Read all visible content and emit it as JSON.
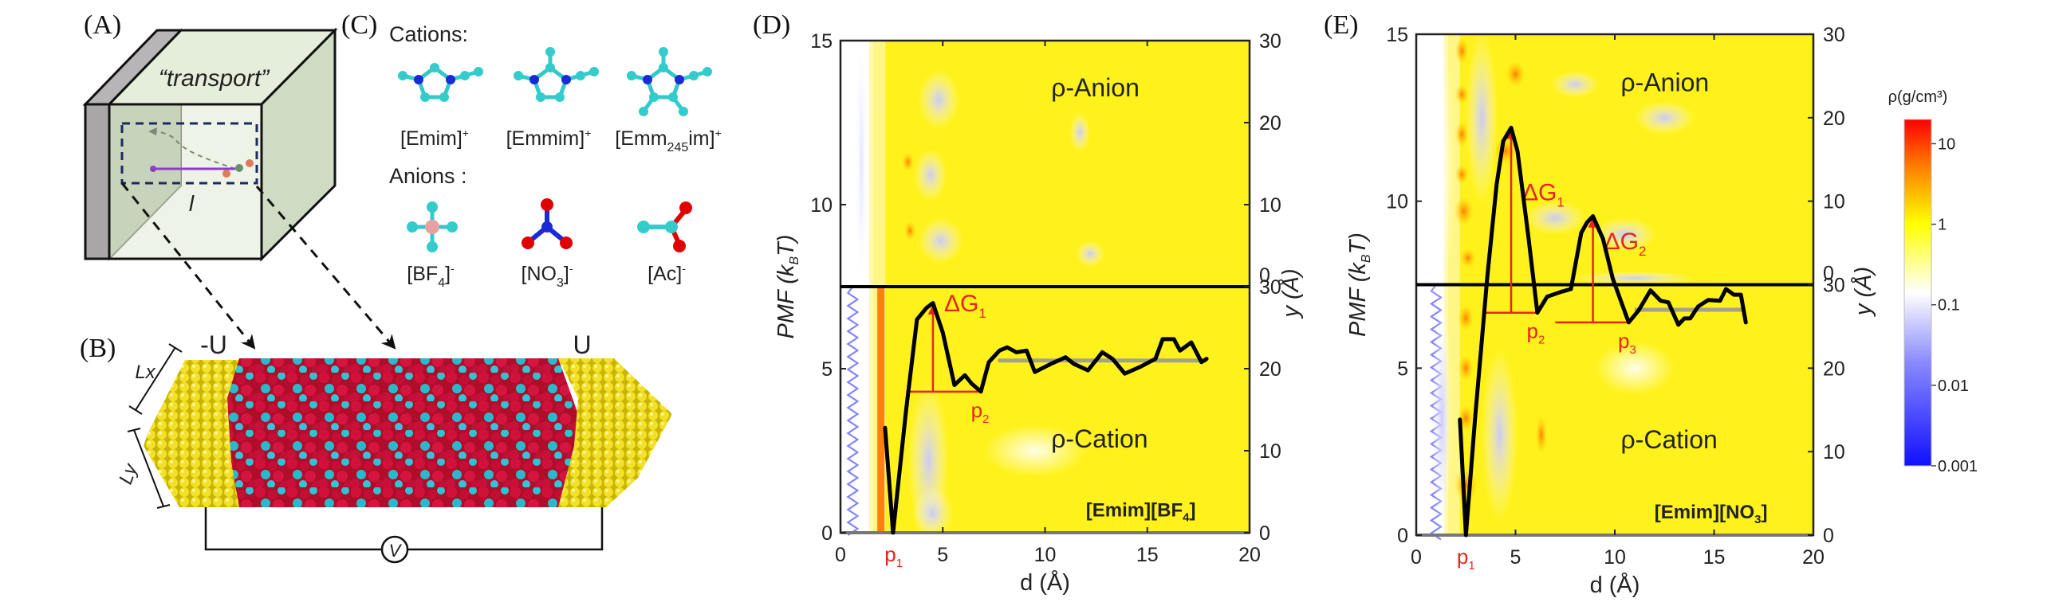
{
  "panels": {
    "A": {
      "label": "(A)",
      "caption": "“transport”",
      "length_symbol": "l"
    },
    "B": {
      "label": "(B)",
      "left_potential": "-U",
      "right_potential": "U",
      "dim_x": "Lx",
      "dim_y": "Ly",
      "voltmeter": "V"
    },
    "C": {
      "label": "(C)",
      "cations_heading": "Cations:",
      "anions_heading": "Anions :",
      "cations": [
        {
          "name": "[Emim]",
          "charge": "+",
          "sub": ""
        },
        {
          "name": "[Emmim]",
          "charge": "+",
          "sub": ""
        },
        {
          "name_pre": "[Emm",
          "sub": "245",
          "name_post": "im]",
          "charge": "+"
        }
      ],
      "anions": [
        {
          "pre": "[BF",
          "sub": "4",
          "post": "]",
          "charge": "-"
        },
        {
          "pre": "[NO",
          "sub": "3",
          "post": "]",
          "charge": "-"
        },
        {
          "pre": "[Ac]",
          "sub": "",
          "post": "",
          "charge": "-"
        }
      ]
    },
    "D": {
      "label": "(D)"
    },
    "E": {
      "label": "(E)"
    }
  },
  "colors": {
    "heatmap_yellow": "#ffff00",
    "heatmap_red": "#ff0000",
    "heatmap_blue": "#1010ff",
    "pmf_line": "#000000",
    "annotation_red": "#e8231d",
    "mean_line": "#9a9a9a",
    "electrode_gold": "#e6d21a",
    "anion_red": "#c8102e",
    "cation_cyan": "#27c0d0"
  },
  "chart_data": [
    {
      "id": "D",
      "type": "line",
      "overlay": "heatmap",
      "title": "",
      "system": {
        "pre": "[Emim][BF",
        "sub": "4",
        "post": "]"
      },
      "xlabel": "d (Å)",
      "ylabel": "PMF (k_BT)",
      "ylabel_parts": {
        "main": "PMF (",
        "k": "k",
        "sub": "B",
        "end": "T)"
      },
      "right_ylabel": "y (Å)",
      "xlim": [
        0,
        20
      ],
      "ylim": [
        0,
        15
      ],
      "xticks": [
        0,
        5,
        10,
        15,
        20
      ],
      "yticks": [
        0,
        5,
        10,
        15
      ],
      "right_yticks_top": [
        0,
        10,
        20,
        30
      ],
      "right_yticks_bottom": [
        0,
        10,
        20,
        30
      ],
      "split_pmf": 7.5,
      "region_labels": {
        "top": "ρ-Anion",
        "bottom": "ρ-Cation"
      },
      "series": [
        {
          "name": "PMF",
          "x": [
            2.18,
            2.57,
            3.2,
            3.74,
            4.2,
            4.52,
            5.0,
            5.57,
            6.08,
            6.4,
            6.86,
            7.25,
            7.77,
            8.15,
            8.6,
            9.1,
            9.5,
            10.3,
            11.0,
            11.4,
            12.1,
            12.8,
            13.3,
            13.9,
            14.7,
            15.4,
            15.75,
            16.3,
            16.6,
            17.15,
            17.65,
            17.9
          ],
          "y": [
            3.2,
            0.0,
            3.7,
            6.5,
            6.85,
            7.0,
            6.1,
            4.5,
            4.8,
            4.55,
            4.3,
            5.2,
            5.55,
            5.65,
            5.5,
            5.55,
            4.9,
            5.15,
            5.35,
            5.15,
            4.95,
            5.5,
            5.3,
            4.85,
            5.07,
            5.3,
            5.9,
            5.9,
            5.55,
            5.8,
            5.2,
            5.3
          ]
        }
      ],
      "mean_line": {
        "x": [
          7.7,
          17.9
        ],
        "y": 5.25
      },
      "annotations": [
        {
          "type": "arrow",
          "label": "ΔG",
          "sub": "1",
          "x": 4.52,
          "y_from": 4.3,
          "y_to": 7.0
        },
        {
          "type": "hline",
          "x_from": 3.3,
          "x_to": 6.9,
          "y": 4.3
        },
        {
          "type": "point",
          "label": "p",
          "sub": "1",
          "x": 2.6
        },
        {
          "type": "point",
          "label": "p",
          "sub": "2",
          "x": 6.9,
          "y": 4.3
        }
      ]
    },
    {
      "id": "E",
      "type": "line",
      "overlay": "heatmap",
      "title": "",
      "system": {
        "pre": "[Emim][NO",
        "sub": "3",
        "post": "]"
      },
      "xlabel": "d (Å)",
      "ylabel": "PMF (k_BT)",
      "ylabel_parts": {
        "main": "PMF (",
        "k": "k",
        "sub": "B",
        "end": "T)"
      },
      "right_ylabel": "y (Å)",
      "xlim": [
        0,
        20
      ],
      "ylim": [
        0,
        15
      ],
      "xticks": [
        0,
        5,
        10,
        15,
        20
      ],
      "yticks": [
        0,
        5,
        10,
        15
      ],
      "right_yticks_top": [
        0,
        10,
        20,
        30
      ],
      "right_yticks_bottom": [
        0,
        10,
        20,
        30
      ],
      "split_pmf": 7.5,
      "region_labels": {
        "top": "ρ-Anion",
        "bottom": "ρ-Cation"
      },
      "series": [
        {
          "name": "PMF",
          "x": [
            2.2,
            2.5,
            2.97,
            3.25,
            3.57,
            4.05,
            4.38,
            4.78,
            5.1,
            5.66,
            6.1,
            6.59,
            7.27,
            7.79,
            8.31,
            8.6,
            8.9,
            9.4,
            9.9,
            10.7,
            11.2,
            11.8,
            12.3,
            12.7,
            13.2,
            13.5,
            13.8,
            14.2,
            14.7,
            15.3,
            15.6,
            16.0,
            16.35,
            16.6
          ],
          "y": [
            3.46,
            0.0,
            3.56,
            5.45,
            7.68,
            10.5,
            11.8,
            12.2,
            11.5,
            8.88,
            6.66,
            7.14,
            7.28,
            7.37,
            9.05,
            9.36,
            9.55,
            8.88,
            7.68,
            6.37,
            6.73,
            7.33,
            7.02,
            6.97,
            6.3,
            6.49,
            6.49,
            6.85,
            7.04,
            7.02,
            7.37,
            7.2,
            7.2,
            6.37
          ]
        }
      ],
      "mean_line": {
        "x": [
          11.0,
          16.4
        ],
        "y": 6.75
      },
      "annotations": [
        {
          "type": "arrow",
          "label": "ΔG",
          "sub": "1",
          "x": 4.78,
          "y_from": 6.66,
          "y_to": 12.2
        },
        {
          "type": "hline",
          "x_from": 3.5,
          "x_to": 6.1,
          "y": 6.66
        },
        {
          "type": "arrow",
          "label": "ΔG",
          "sub": "2",
          "x": 8.9,
          "y_from": 6.37,
          "y_to": 9.55
        },
        {
          "type": "hline",
          "x_from": 7.0,
          "x_to": 10.7,
          "y": 6.37
        },
        {
          "type": "point",
          "label": "p",
          "sub": "1",
          "x": 2.5
        },
        {
          "type": "point",
          "label": "p",
          "sub": "2",
          "x": 6.1,
          "y": 6.66
        },
        {
          "type": "point",
          "label": "p",
          "sub": "3",
          "x": 10.7,
          "y": 6.37
        }
      ]
    },
    {
      "id": "colorbar",
      "type": "heatmap",
      "title": "ρ(g/cm³)",
      "scale": "log",
      "range": [
        0.001,
        20
      ],
      "ticks": [
        "10",
        "1",
        "0.1",
        "0.01",
        "0.001"
      ],
      "tick_values": [
        10,
        1,
        0.1,
        0.01,
        0.001
      ],
      "colormap": [
        "#1010ff",
        "#8080ff",
        "#ffffff",
        "#ffff00",
        "#ff8000",
        "#ff0000"
      ]
    }
  ]
}
